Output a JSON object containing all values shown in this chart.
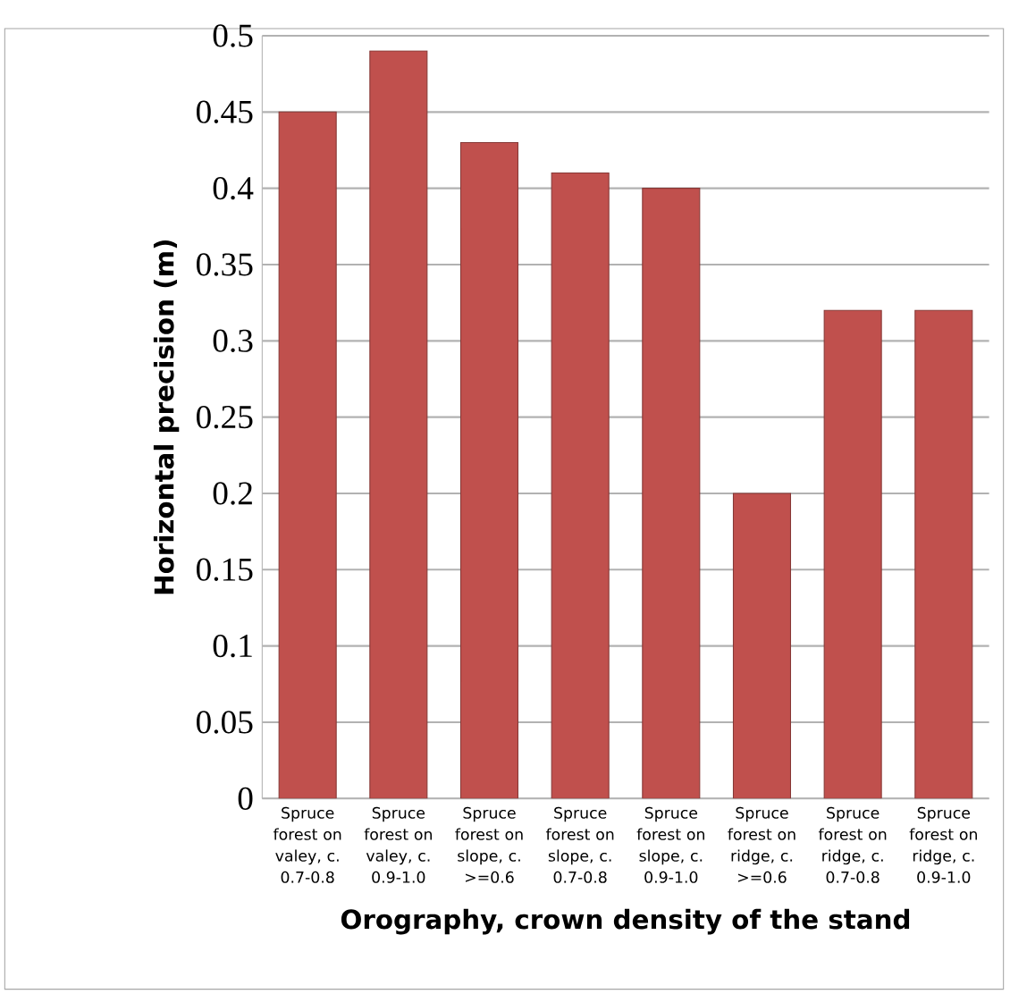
{
  "chart_data": {
    "type": "bar",
    "xlabel": "Orography, crown density of the stand",
    "ylabel": "Horizontal precision (m)",
    "categories": [
      "Spruce forest on valey, c. 0.7-0.8",
      "Spruce forest on valey, c. 0.9-1.0",
      "Spruce forest on slope, c. >=0.6",
      "Spruce forest on slope, c. 0.7-0.8",
      "Spruce forest on slope, c. 0.9-1.0",
      "Spruce forest on ridge, c. >=0.6",
      "Spruce forest on ridge, c. 0.7-0.8",
      "Spruce forest on ridge, c. 0.9-1.0"
    ],
    "values": [
      0.45,
      0.49,
      0.43,
      0.41,
      0.4,
      0.2,
      0.32,
      0.32
    ],
    "color": "#c0504d",
    "ylim": [
      0,
      0.5
    ],
    "yticks": [
      0,
      0.05,
      0.1,
      0.15,
      0.2,
      0.25,
      0.3,
      0.35,
      0.4,
      0.45,
      0.5
    ],
    "grid": "y"
  }
}
